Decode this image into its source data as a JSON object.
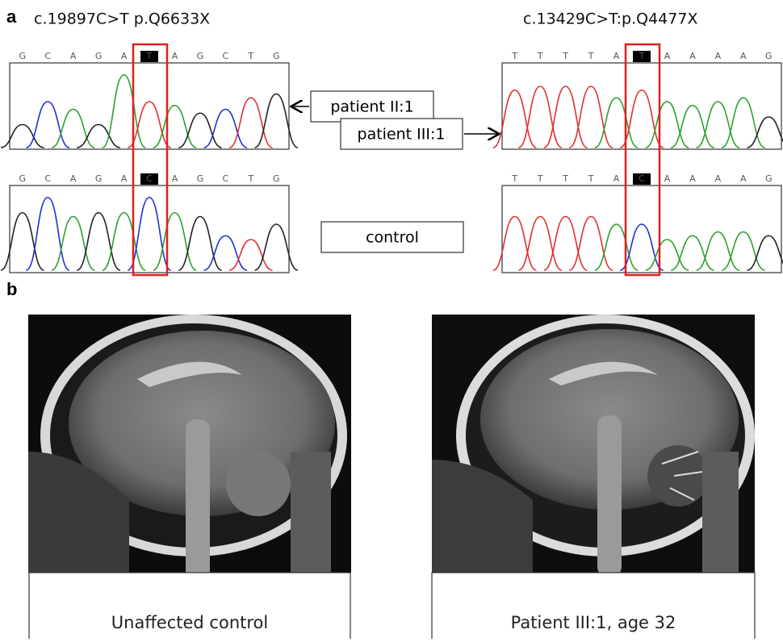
{
  "panel_a": {
    "label": "a",
    "left_title": "c.19897C>T p.Q6633X",
    "right_title": "c.13429C>T:p.Q4477X",
    "patient_label_1": "patient II:1",
    "patient_label_2": "patient III:1",
    "control_label": "control",
    "left_patient_seq": [
      "G",
      "C",
      "A",
      "G",
      "A",
      "T",
      "A",
      "G",
      "C",
      "T",
      "G"
    ],
    "left_control_seq": [
      "G",
      "C",
      "A",
      "G",
      "A",
      "C",
      "A",
      "G",
      "C",
      "T",
      "G"
    ],
    "right_patient_seq": [
      "T",
      "T",
      "T",
      "T",
      "A",
      "T",
      "A",
      "A",
      "A",
      "A",
      "G"
    ],
    "right_control_seq": [
      "T",
      "T",
      "T",
      "T",
      "A",
      "C",
      "A",
      "A",
      "A",
      "A",
      "G"
    ]
  },
  "panel_b": {
    "label": "b",
    "left_caption": "Unaffected control",
    "right_caption": "Patient III:1, age 32"
  }
}
